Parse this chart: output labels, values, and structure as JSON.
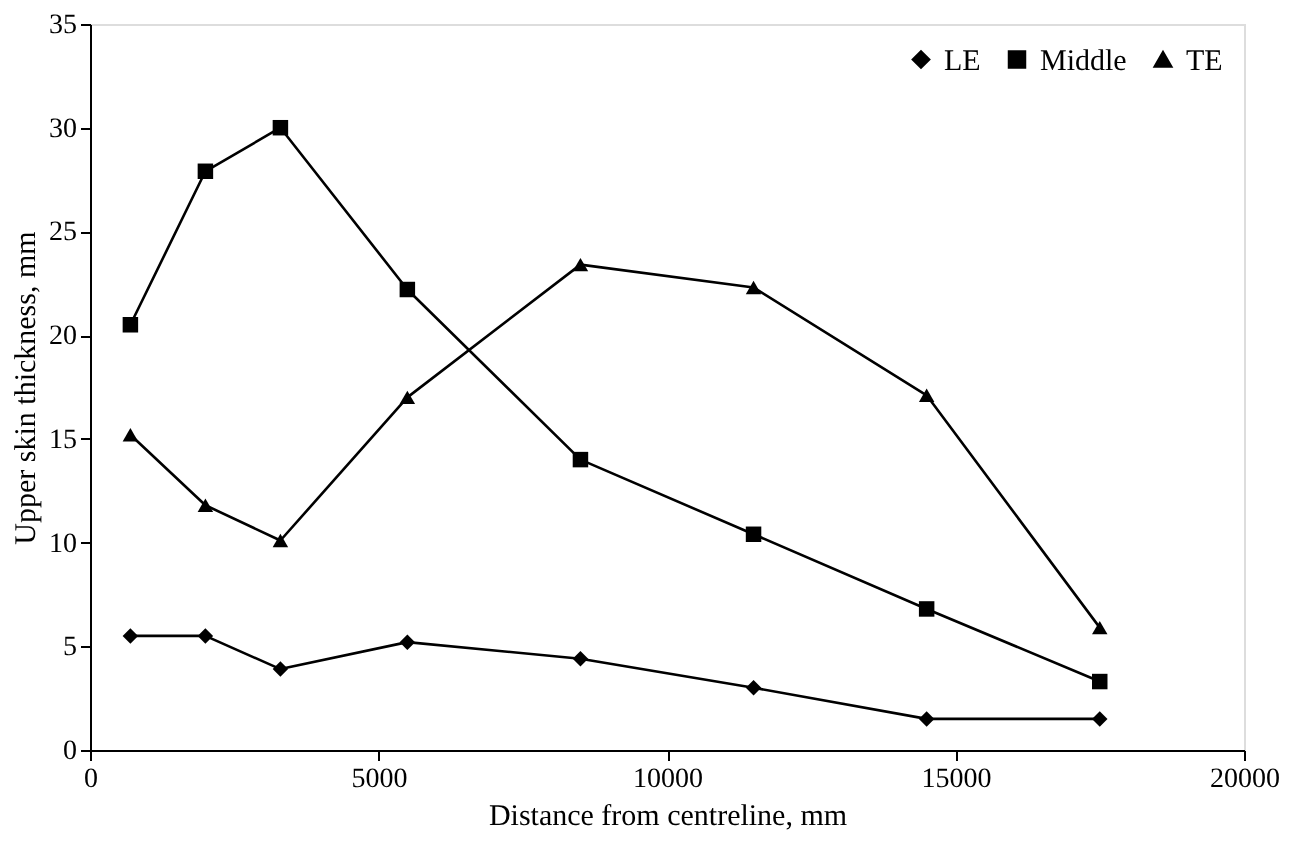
{
  "chart_data": {
    "type": "line",
    "xlabel": "Distance from centreline, mm",
    "ylabel": "Upper skin thickness, mm",
    "x": [
      700,
      2000,
      3300,
      5500,
      8500,
      11500,
      14500,
      17500
    ],
    "series": [
      {
        "name": "LE",
        "color": "#000000",
        "marker": "diamond",
        "values": [
          5.5,
          5.5,
          3.9,
          5.2,
          4.4,
          3.0,
          1.5,
          1.5
        ]
      },
      {
        "name": "Middle",
        "color": "#000000",
        "marker": "square",
        "values": [
          20.5,
          27.9,
          30.0,
          22.2,
          14.0,
          10.4,
          6.8,
          3.3
        ]
      },
      {
        "name": "TE",
        "color": "#000000",
        "marker": "triangle",
        "values": [
          15.2,
          11.8,
          10.1,
          17.0,
          23.4,
          22.3,
          17.1,
          5.9
        ]
      }
    ],
    "xlim": [
      0,
      20000
    ],
    "xticks": [
      0,
      5000,
      10000,
      15000,
      20000
    ],
    "ylim": [
      0,
      35
    ],
    "yticks": [
      0,
      5,
      10,
      15,
      20,
      25,
      30,
      35
    ],
    "grid": false,
    "legend": "top right",
    "line_style": "solid"
  }
}
